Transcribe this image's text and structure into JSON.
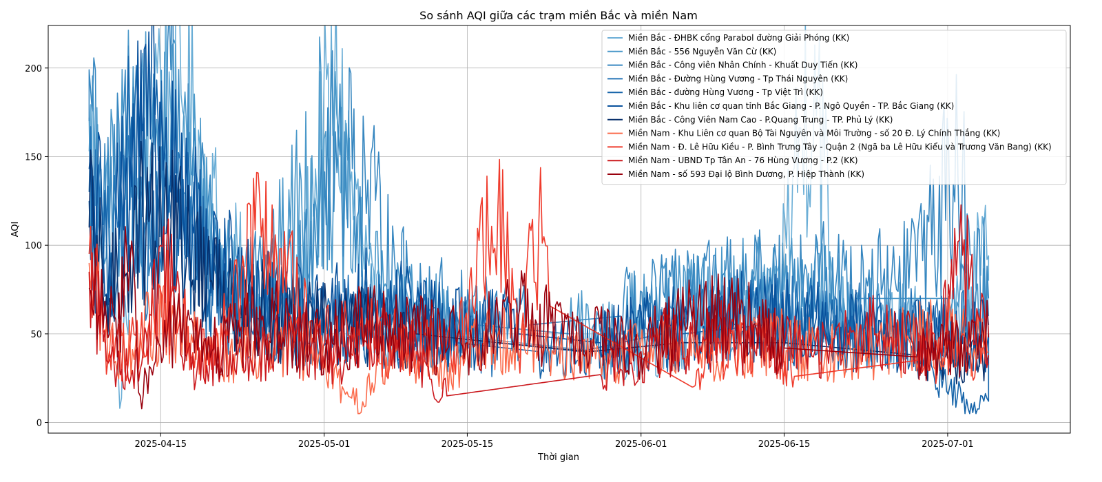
{
  "chart_data": {
    "type": "line",
    "title": "So sánh AQI giữa các trạm miền Bắc và miền Nam",
    "xlabel": "Thời gian",
    "ylabel": "AQI",
    "x_range": [
      "2025-04-04",
      "2025-07-13"
    ],
    "ylim": [
      -6,
      224
    ],
    "x_ticks": [
      "2025-04-15",
      "2025-05-01",
      "2025-05-15",
      "2025-06-01",
      "2025-06-15",
      "2025-07-01"
    ],
    "y_ticks": [
      0,
      50,
      100,
      150,
      200
    ],
    "grid": true,
    "legend_position": "top-right",
    "series": [
      {
        "name": "Miền Bắc - ĐHBK cổng Parabol đường Giải Phóng (KK)",
        "color": "#6baed6",
        "points": [
          [
            "2025-04-08",
            153
          ],
          [
            "2025-04-10",
            118
          ],
          [
            "2025-04-11",
            8
          ],
          [
            "2025-04-12",
            95
          ],
          [
            "2025-04-14",
            190
          ],
          [
            "2025-04-15",
            195
          ],
          [
            "2025-04-16",
            175
          ],
          [
            "2025-04-17",
            185
          ],
          [
            "2025-04-19",
            145
          ],
          [
            "2025-04-21",
            100
          ],
          [
            "2025-04-24",
            70
          ],
          [
            "2025-04-28",
            60
          ],
          [
            "2025-05-02",
            185
          ],
          [
            "2025-05-06",
            60
          ],
          [
            "2025-05-12",
            50
          ],
          [
            "2025-05-20",
            45
          ],
          [
            "2025-05-28",
            40
          ],
          [
            "2025-06-02",
            45
          ],
          [
            "2025-06-08",
            55
          ],
          [
            "2025-06-14",
            60
          ],
          [
            "2025-06-18",
            213
          ],
          [
            "2025-06-20",
            60
          ],
          [
            "2025-06-26",
            55
          ],
          [
            "2025-07-01",
            50
          ],
          [
            "2025-07-05",
            94
          ],
          [
            "2025-07-05",
            80
          ]
        ]
      },
      {
        "name": "Miền Bắc - 556 Nguyễn Văn Cừ (KK)",
        "color": "#4a98c9",
        "points": [
          [
            "2025-04-08",
            172
          ],
          [
            "2025-04-09",
            110
          ],
          [
            "2025-04-10",
            120
          ],
          [
            "2025-04-12",
            160
          ],
          [
            "2025-04-14",
            150
          ],
          [
            "2025-04-16",
            165
          ],
          [
            "2025-04-18",
            140
          ],
          [
            "2025-04-21",
            90
          ],
          [
            "2025-04-25",
            70
          ],
          [
            "2025-05-01",
            160
          ],
          [
            "2025-05-05",
            80
          ],
          [
            "2025-05-10",
            60
          ],
          [
            "2025-05-16",
            55
          ],
          [
            "2025-05-25",
            50
          ],
          [
            "2025-06-01",
            60
          ],
          [
            "2025-06-08",
            70
          ],
          [
            "2025-06-15",
            75
          ],
          [
            "2025-06-22",
            70
          ],
          [
            "2025-07-01",
            70
          ],
          [
            "2025-07-05",
            60
          ]
        ]
      },
      {
        "name": "Miền Bắc - Công viên Nhân Chính - Khuất Duy Tiến (KK)",
        "color": "#3787c0",
        "points": [
          [
            "2025-04-08",
            170
          ],
          [
            "2025-04-08",
            199
          ],
          [
            "2025-04-10",
            110
          ],
          [
            "2025-04-12",
            165
          ],
          [
            "2025-04-14",
            90
          ],
          [
            "2025-04-16",
            199
          ],
          [
            "2025-04-18",
            120
          ],
          [
            "2025-04-22",
            80
          ],
          [
            "2025-04-27",
            70
          ],
          [
            "2025-05-03",
            164
          ],
          [
            "2025-05-08",
            80
          ],
          [
            "2025-05-14",
            60
          ],
          [
            "2025-05-21",
            55
          ],
          [
            "2025-05-30",
            60
          ],
          [
            "2025-06-06",
            70
          ],
          [
            "2025-06-12",
            75
          ],
          [
            "2025-06-19",
            80
          ],
          [
            "2025-06-26",
            75
          ],
          [
            "2025-07-02",
            140
          ],
          [
            "2025-07-05",
            70
          ]
        ]
      },
      {
        "name": "Miền Bắc - Đường Hùng Vương - Tp Thái Nguyên (KK)",
        "color": "#2474b7",
        "points": [
          [
            "2025-04-08",
            130
          ],
          [
            "2025-04-10",
            90
          ],
          [
            "2025-04-12",
            120
          ],
          [
            "2025-04-14",
            100
          ],
          [
            "2025-04-16",
            115
          ],
          [
            "2025-04-19",
            80
          ],
          [
            "2025-04-23",
            60
          ],
          [
            "2025-04-29",
            55
          ],
          [
            "2025-05-05",
            60
          ],
          [
            "2025-05-11",
            50
          ],
          [
            "2025-05-18",
            45
          ],
          [
            "2025-05-26",
            40
          ],
          [
            "2025-06-03",
            50
          ],
          [
            "2025-06-10",
            55
          ],
          [
            "2025-06-17",
            60
          ],
          [
            "2025-06-24",
            55
          ],
          [
            "2025-07-01",
            50
          ],
          [
            "2025-07-05",
            55
          ]
        ]
      },
      {
        "name": "Miền Bắc - đường Hùng Vương - Tp Việt Trì (KK)",
        "color": "#1463a9",
        "points": [
          [
            "2025-04-08",
            125
          ],
          [
            "2025-04-10",
            80
          ],
          [
            "2025-04-12",
            150
          ],
          [
            "2025-04-14",
            140
          ],
          [
            "2025-04-16",
            130
          ],
          [
            "2025-04-19",
            90
          ],
          [
            "2025-04-24",
            60
          ],
          [
            "2025-04-30",
            50
          ],
          [
            "2025-05-07",
            55
          ],
          [
            "2025-05-14",
            45
          ],
          [
            "2025-05-22",
            40
          ],
          [
            "2025-05-29",
            45
          ],
          [
            "2025-06-05",
            50
          ],
          [
            "2025-06-13",
            55
          ],
          [
            "2025-06-20",
            50
          ],
          [
            "2025-06-27",
            45
          ],
          [
            "2025-07-03",
            8
          ],
          [
            "2025-07-05",
            12
          ],
          [
            "2025-07-05",
            50
          ]
        ]
      },
      {
        "name": "Miền Bắc - Khu liên cơ quan tỉnh Bắc Giang - P. Ngô Quyền - TP. Bắc Giang (KK)",
        "color": "#08519c",
        "points": [
          [
            "2025-04-08",
            143
          ],
          [
            "2025-04-10",
            100
          ],
          [
            "2025-04-12",
            150
          ],
          [
            "2025-04-14",
            160
          ],
          [
            "2025-04-16",
            140
          ],
          [
            "2025-04-19",
            100
          ],
          [
            "2025-04-24",
            70
          ],
          [
            "2025-04-30",
            60
          ],
          [
            "2025-05-06",
            70
          ],
          [
            "2025-05-13",
            55
          ],
          [
            "2025-05-20",
            50
          ],
          [
            "2025-05-28",
            45
          ],
          [
            "2025-06-04",
            55
          ],
          [
            "2025-06-11",
            60
          ],
          [
            "2025-06-18",
            55
          ],
          [
            "2025-06-25",
            50
          ],
          [
            "2025-07-02",
            45
          ],
          [
            "2025-07-05",
            50
          ]
        ]
      },
      {
        "name": "Miền Bắc - Công Viên Nam Cao - P.Quang Trung - TP. Phủ Lý (KK)",
        "color": "#08306b",
        "points": [
          [
            "2025-04-08",
            110
          ],
          [
            "2025-04-10",
            70
          ],
          [
            "2025-04-12",
            100
          ],
          [
            "2025-04-14",
            120
          ],
          [
            "2025-04-16",
            110
          ],
          [
            "2025-04-20",
            80
          ],
          [
            "2025-04-26",
            60
          ],
          [
            "2025-05-03",
            55
          ],
          [
            "2025-05-10",
            50
          ],
          [
            "2025-05-18",
            45
          ],
          [
            "2025-05-27",
            40
          ],
          [
            "2025-06-05",
            45
          ],
          [
            "2025-06-15",
            45
          ],
          [
            "2025-06-28",
            38
          ],
          [
            "2025-07-05",
            38
          ]
        ]
      },
      {
        "name": "Miền Nam - Khu Liên cơ quan Bộ Tài Nguyên và Môi Trường - số 20 Đ. Lý Chính Thắng (KK)",
        "color": "#fb6a4a",
        "points": [
          [
            "2025-04-08",
            90
          ],
          [
            "2025-04-10",
            40
          ],
          [
            "2025-04-13",
            50
          ],
          [
            "2025-04-16",
            55
          ],
          [
            "2025-04-20",
            35
          ],
          [
            "2025-04-25",
            45
          ],
          [
            "2025-04-30",
            40
          ],
          [
            "2025-05-04",
            10
          ],
          [
            "2025-05-08",
            40
          ],
          [
            "2025-05-13",
            30
          ],
          [
            "2025-05-18",
            50
          ],
          [
            "2025-05-23",
            40
          ],
          [
            "2025-05-28",
            35
          ],
          [
            "2025-06-02",
            45
          ],
          [
            "2025-06-08",
            40
          ],
          [
            "2025-06-14",
            45
          ],
          [
            "2025-06-20",
            40
          ],
          [
            "2025-06-26",
            45
          ],
          [
            "2025-07-01",
            50
          ],
          [
            "2025-07-05",
            40
          ]
        ]
      },
      {
        "name": "Miền Nam - Đ. Lê Hữu Kiều - P. Bình Trưng Tây - Quận 2 (Ngã ba Lê Hữu Kiểu và Trương Văn Bang) (KK)",
        "color": "#ef3b2c",
        "points": [
          [
            "2025-04-08",
            95
          ],
          [
            "2025-04-10",
            40
          ],
          [
            "2025-04-13",
            45
          ],
          [
            "2025-04-16",
            70
          ],
          [
            "2025-04-20",
            30
          ],
          [
            "2025-04-25",
            115
          ],
          [
            "2025-04-30",
            45
          ],
          [
            "2025-05-05",
            50
          ],
          [
            "2025-05-10",
            40
          ],
          [
            "2025-05-14",
            45
          ],
          [
            "2025-05-18",
            122
          ],
          [
            "2025-05-20",
            40
          ],
          [
            "2025-05-22",
            112
          ],
          [
            "2025-05-23",
            66
          ],
          [
            "2025-06-06",
            20
          ],
          [
            "2025-06-08",
            40
          ],
          [
            "2025-06-14",
            45
          ],
          [
            "2025-06-16",
            26
          ],
          [
            "2025-06-28",
            35
          ],
          [
            "2025-07-02",
            45
          ],
          [
            "2025-07-05",
            33
          ]
        ]
      },
      {
        "name": "Miền Nam - UBND Tp Tân An - 76 Hùng Vương - P.2 (KK)",
        "color": "#cb181d",
        "points": [
          [
            "2025-04-08",
            85
          ],
          [
            "2025-04-10",
            35
          ],
          [
            "2025-04-13",
            30
          ],
          [
            "2025-04-15",
            100
          ],
          [
            "2025-04-18",
            30
          ],
          [
            "2025-04-23",
            40
          ],
          [
            "2025-04-28",
            45
          ],
          [
            "2025-05-03",
            35
          ],
          [
            "2025-05-08",
            50
          ],
          [
            "2025-05-13",
            15
          ],
          [
            "2025-05-28",
            27
          ],
          [
            "2025-06-01",
            40
          ],
          [
            "2025-06-06",
            50
          ],
          [
            "2025-06-12",
            45
          ],
          [
            "2025-06-18",
            40
          ],
          [
            "2025-06-24",
            50
          ],
          [
            "2025-06-30",
            40
          ],
          [
            "2025-07-02",
            102
          ],
          [
            "2025-07-04",
            60
          ],
          [
            "2025-07-05",
            38
          ]
        ]
      },
      {
        "name": "Miền Nam - số 593 Đại lộ Bình Dương, P. Hiệp Thành (KK)",
        "color": "#99000d",
        "points": [
          [
            "2025-04-08",
            76
          ],
          [
            "2025-04-10",
            50
          ],
          [
            "2025-04-12",
            90
          ],
          [
            "2025-04-13",
            15
          ],
          [
            "2025-04-16",
            55
          ],
          [
            "2025-04-20",
            40
          ],
          [
            "2025-04-25",
            60
          ],
          [
            "2025-04-30",
            45
          ],
          [
            "2025-05-05",
            55
          ],
          [
            "2025-05-10",
            50
          ],
          [
            "2025-05-15",
            45
          ],
          [
            "2025-05-20",
            60
          ],
          [
            "2025-05-25",
            50
          ],
          [
            "2025-06-01",
            40
          ],
          [
            "2025-06-06",
            60
          ],
          [
            "2025-06-12",
            55
          ],
          [
            "2025-06-15",
            42
          ],
          [
            "2025-06-28",
            37
          ],
          [
            "2025-07-05",
            48
          ]
        ]
      }
    ]
  }
}
